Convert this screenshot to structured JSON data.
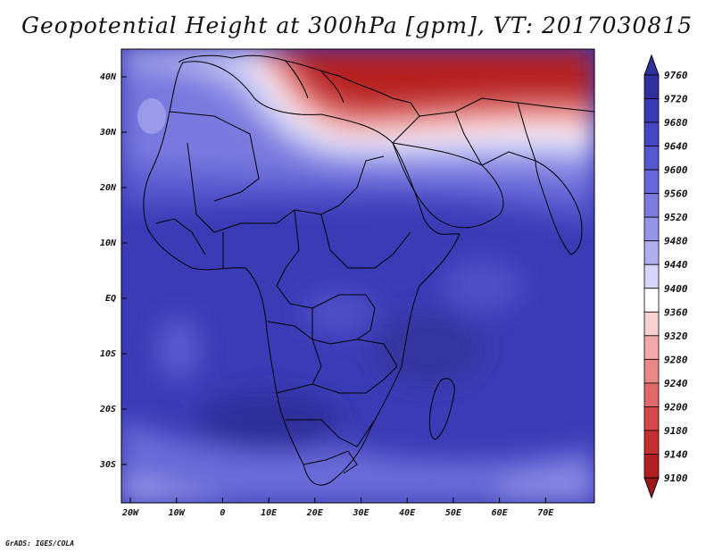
{
  "title": "Geopotential Height at 300hPa [gpm], VT: 2017030815",
  "credit": "GrADS: IGES/COLA",
  "map": {
    "lat_labels": [
      "40N",
      "30N",
      "20N",
      "10N",
      "EQ",
      "10S",
      "20S",
      "30S"
    ],
    "lon_labels": [
      "20W",
      "10W",
      "0",
      "10E",
      "20E",
      "30E",
      "40E",
      "50E",
      "60E",
      "70E"
    ]
  },
  "colorbar": {
    "levels": [
      "9760",
      "9720",
      "9680",
      "9640",
      "9600",
      "9560",
      "9520",
      "9480",
      "9440",
      "9400",
      "9360",
      "9320",
      "9280",
      "9240",
      "9200",
      "9180",
      "9140",
      "9100"
    ],
    "colors": [
      "#2f2f9e",
      "#3a3ab4",
      "#4646c4",
      "#5656cf",
      "#6666d8",
      "#7c7ce0",
      "#9494e8",
      "#b0b0f0",
      "#d6d6f8",
      "#ffffff",
      "#f8d0d0",
      "#f2a8a8",
      "#ea8888",
      "#e06868",
      "#d64848",
      "#c43030",
      "#b02020"
    ]
  }
}
